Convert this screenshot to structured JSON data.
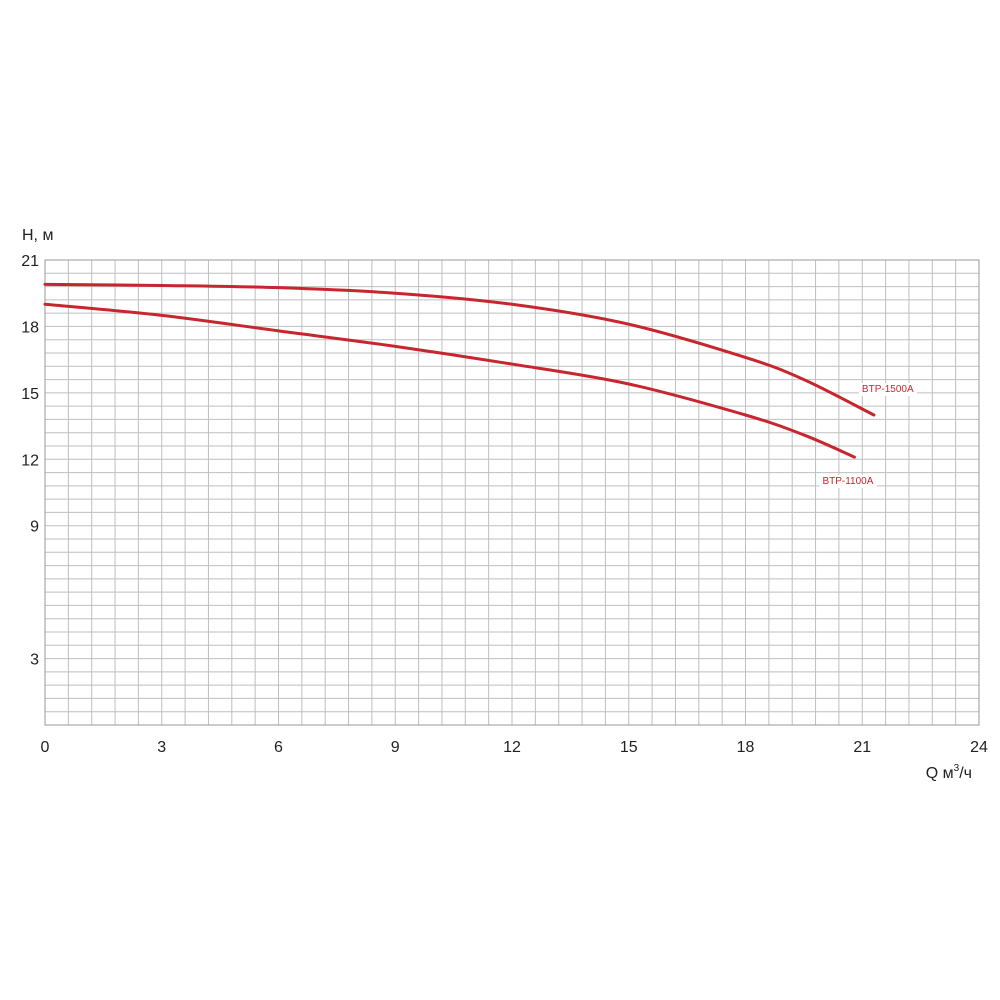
{
  "colors": {
    "curve": "#c8262e",
    "grid": "#bfbfbf",
    "axis_text": "#222222"
  },
  "chart_data": {
    "type": "line",
    "title": "",
    "xlabel": "Q м",
    "xlabel_sup": "3",
    "xlabel_suffix": "/ч",
    "ylabel": "H, м",
    "xlim": [
      0,
      24
    ],
    "ylim": [
      0,
      21
    ],
    "x_ticks": [
      0,
      3,
      6,
      9,
      12,
      15,
      18,
      21,
      24
    ],
    "y_ticks": [
      3,
      9,
      12,
      15,
      18,
      21
    ],
    "x_grid_step": 0.6,
    "y_grid_step": 0.6,
    "grid": true,
    "series": [
      {
        "name": "BTP-1500A",
        "x": [
          0,
          3,
          6,
          9,
          12,
          15,
          18,
          19.5,
          21.3
        ],
        "y": [
          19.9,
          19.85,
          19.75,
          19.5,
          19.0,
          18.1,
          16.6,
          15.6,
          14.0
        ]
      },
      {
        "name": "BTP-1100A",
        "x": [
          0,
          3,
          6,
          9,
          12,
          15,
          18,
          19.5,
          20.8
        ],
        "y": [
          19.0,
          18.5,
          17.8,
          17.1,
          16.3,
          15.4,
          14.0,
          13.1,
          12.1
        ]
      }
    ]
  }
}
